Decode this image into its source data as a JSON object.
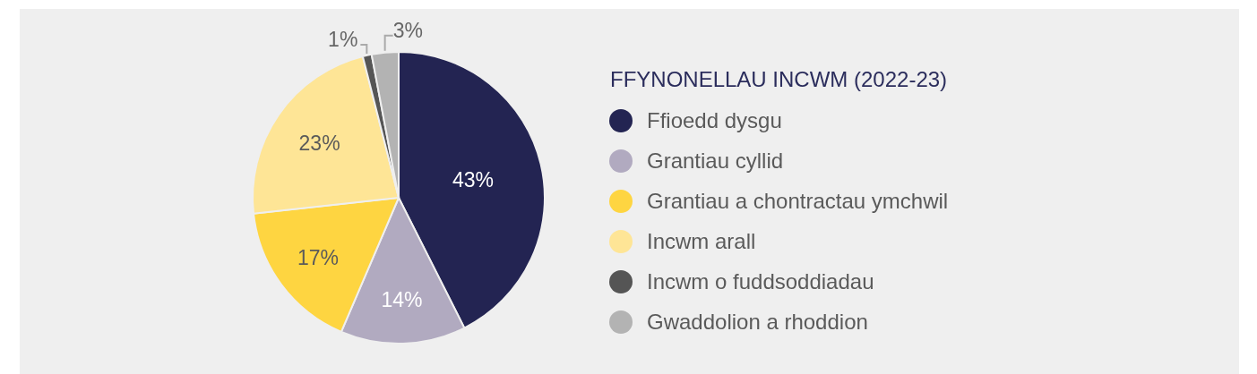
{
  "chart_data": {
    "type": "pie",
    "legend_title": "FFYNONELLAU INCWM (2022-23)",
    "categories": [
      "Ffioedd dysgu",
      "Grantiau cyllid",
      "Grantiau a chontractau ymchwil",
      "Incwm arall",
      "Incwm o fuddsoddiadau",
      "Gwaddolion a rhoddion"
    ],
    "values": [
      43,
      14,
      17,
      23,
      1,
      3
    ],
    "colors": [
      "#232452",
      "#b1aac0",
      "#fed541",
      "#fee596",
      "#555555",
      "#b3b3b3"
    ],
    "value_labels": [
      "43%",
      "14%",
      "17%",
      "23%",
      "1%",
      "3%"
    ],
    "legend": "right"
  }
}
